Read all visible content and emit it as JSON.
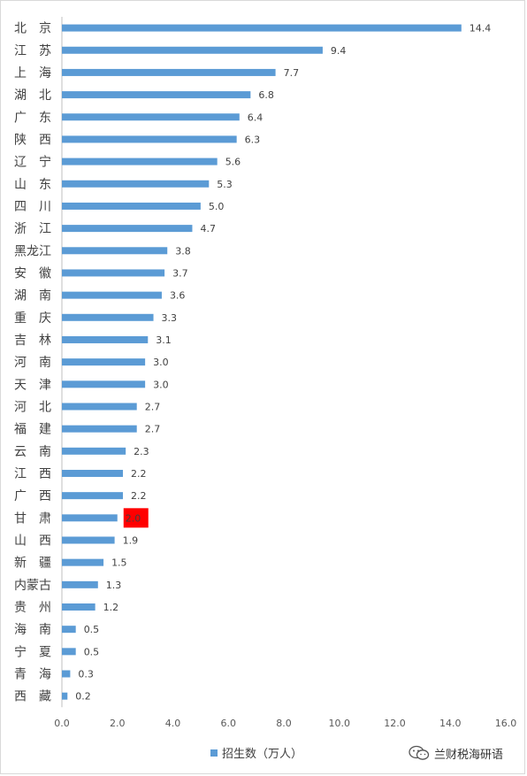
{
  "chart_data": {
    "type": "bar",
    "orientation": "horizontal",
    "categories": [
      "北　京",
      "江　苏",
      "上　海",
      "湖　北",
      "广　东",
      "陕　西",
      "辽　宁",
      "山　东",
      "四　川",
      "浙　江",
      "黑龙江",
      "安　徽",
      "湖　南",
      "重　庆",
      "吉　林",
      "河　南",
      "天　津",
      "河　北",
      "福　建",
      "云　南",
      "江　西",
      "广　西",
      "甘　肃",
      "山　西",
      "新　疆",
      "内蒙古",
      "贵　州",
      "海　南",
      "宁　夏",
      "青　海",
      "西　藏"
    ],
    "series": [
      {
        "name": "招生数（万人）",
        "values": [
          14.4,
          9.4,
          7.7,
          6.8,
          6.4,
          6.3,
          5.6,
          5.3,
          5.0,
          4.7,
          3.8,
          3.7,
          3.6,
          3.3,
          3.1,
          3.0,
          3.0,
          2.7,
          2.7,
          2.3,
          2.2,
          2.2,
          2.0,
          1.9,
          1.5,
          1.3,
          1.2,
          0.5,
          0.5,
          0.3,
          0.2
        ],
        "labels": [
          "14.4",
          "9.4",
          "7.7",
          "6.8",
          "6.4",
          "6.3",
          "5.6",
          "5.3",
          "5.0",
          "4.7",
          "3.8",
          "3.7",
          "3.6",
          "3.3",
          "3.1",
          "3.0",
          "3.0",
          "2.7",
          "2.7",
          "2.3",
          "2.2",
          "2.2",
          "2.0",
          "1.9",
          "1.5",
          "1.3",
          "1.2",
          "0.5",
          "0.5",
          "0.3",
          "0.2"
        ]
      }
    ],
    "highlight_index": 22,
    "xlim": [
      0,
      16
    ],
    "x_ticks": [
      "0.0",
      "2.0",
      "4.0",
      "6.0",
      "8.0",
      "10.0",
      "12.0",
      "14.0",
      "16.0"
    ],
    "legend_position": "bottom",
    "grid": false,
    "colors": {
      "bar": "#5b9bd5",
      "highlight": "#ff0000",
      "axis": "#bfbfbf"
    }
  },
  "watermark": {
    "icon": "wechat-icon",
    "text": "兰财税海研语"
  }
}
